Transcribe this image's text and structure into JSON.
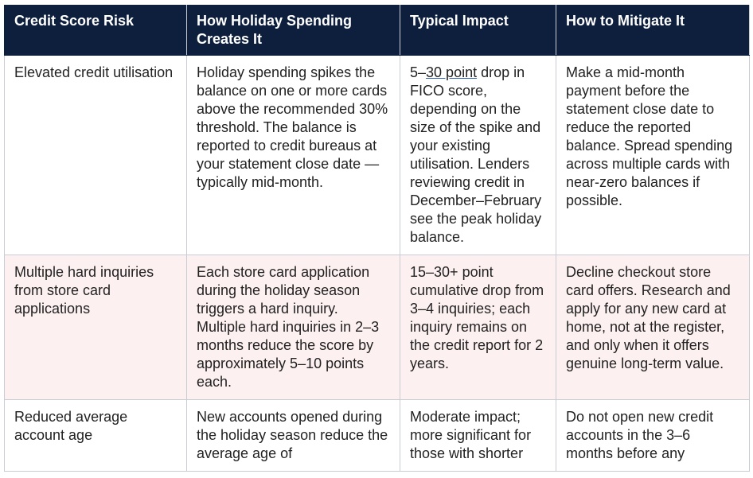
{
  "table": {
    "header": [
      "Credit Score Risk",
      "How Holiday Spending Creates It",
      "Typical Impact",
      "How to Mitigate It"
    ],
    "rows": [
      [
        "Elevated credit utilisation",
        "Holiday spending spikes the balance on one or more cards above the recommended 30% threshold. The balance is reported to credit bureaus at your statement close date — typically mid-month.",
        [
          "5–",
          "30 point",
          " drop in FICO score, depending on the size of the spike and your existing utilisation. Lenders reviewing credit in December–February see the peak holiday balance."
        ],
        "Make a mid-month payment before the statement close date to reduce the reported balance. Spread spending across multiple cards with near-zero balances if possible."
      ],
      [
        "Multiple hard inquiries from store card applications",
        "Each store card application during the holiday season triggers a hard inquiry. Multiple hard inquiries in 2–3 months reduce the score by approximately 5–10 points each.",
        "15–30+ point cumulative drop from 3–4 inquiries; each inquiry remains on the credit report for 2 years.",
        "Decline checkout store card offers. Research and apply for any new card at home, not at the register, and only when it offers genuine long-term value."
      ],
      [
        "Reduced average account age",
        "New accounts opened during the holiday season reduce the average age of",
        "Moderate impact; more significant for those with shorter",
        "Do not open new credit accounts in the 3–6 months before any"
      ]
    ]
  }
}
